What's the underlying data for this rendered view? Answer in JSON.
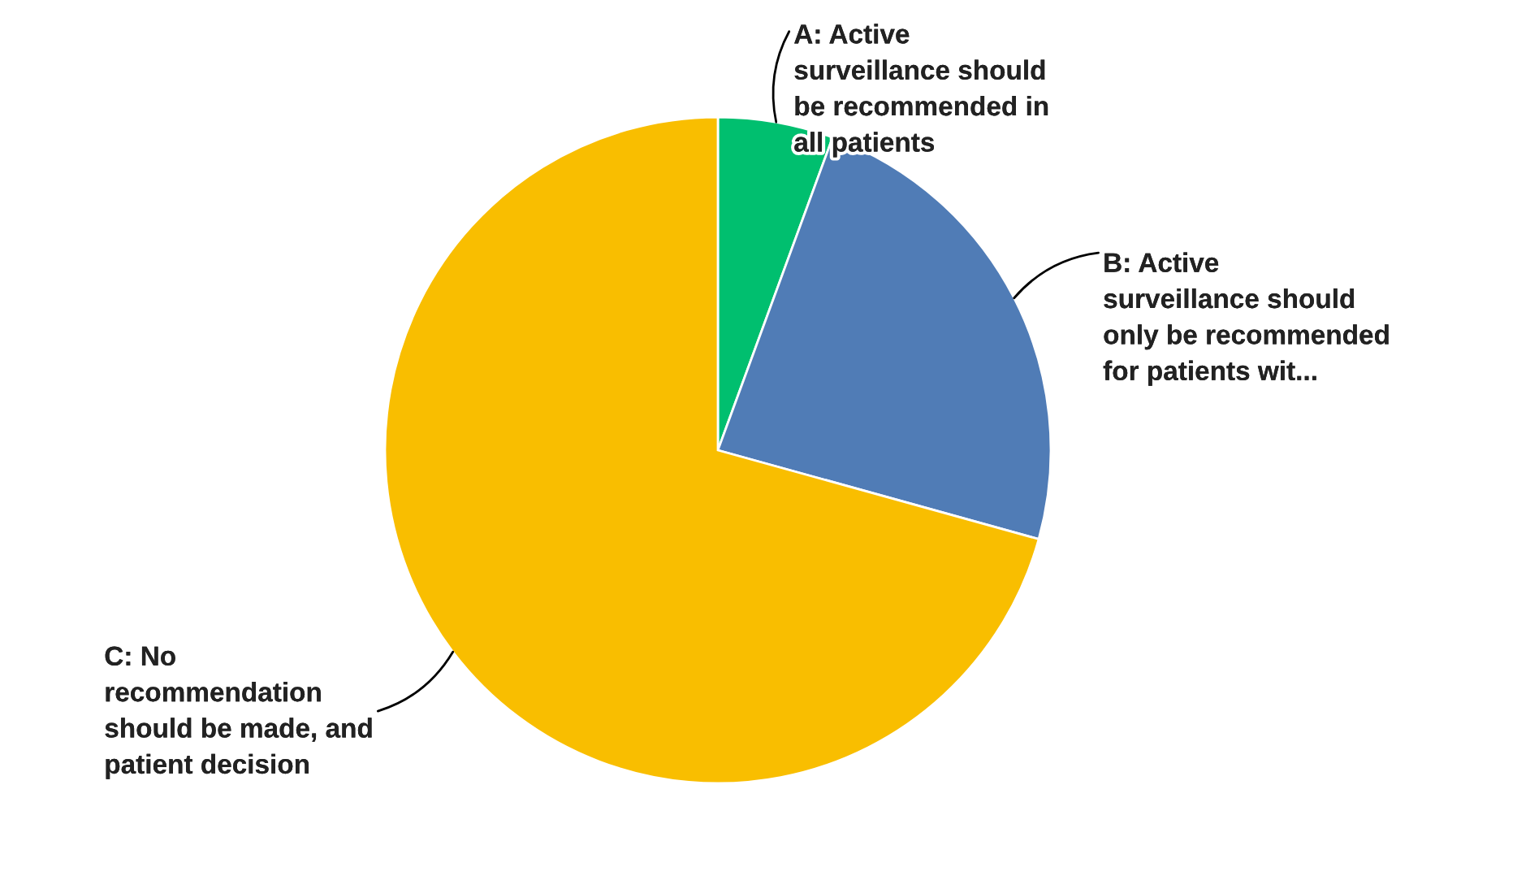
{
  "chart_data": {
    "type": "pie",
    "categories": [
      "A: Active\nsurveillance should\nbe recommended in\nall patients",
      "B: Active\nsurveillance should\nonly be recommended\nfor patients wit...",
      "C: No\nrecommendation\nshould be made, and\npatient decision"
    ],
    "values": [
      5.6,
      23.7,
      70.7
    ],
    "colors": [
      "#00bf6f",
      "#507cb6",
      "#f9be00"
    ]
  }
}
